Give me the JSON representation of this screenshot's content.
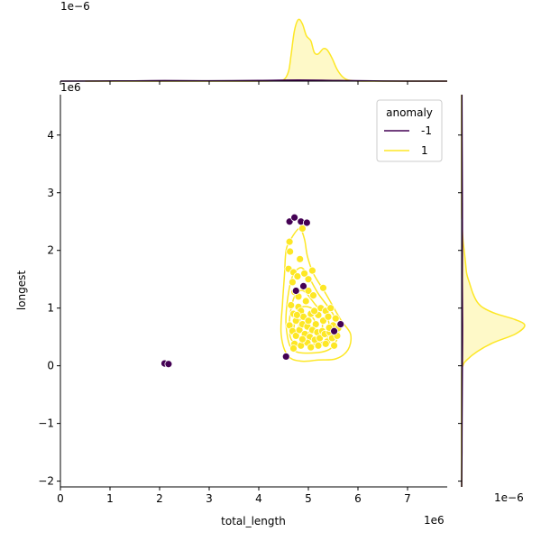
{
  "chart_data": {
    "type": "scatter",
    "style": {
      "colors": {
        "-1": "#440154",
        "1": "#fde725"
      },
      "kde_fill": "#fde725",
      "point_edge": "#ffffff",
      "spine_color": "#000000"
    },
    "xlabel": "total_length",
    "ylabel": "longest",
    "x_offset_text": "1e6",
    "y_offset_text": "1e6",
    "top_marginal_offset_text": "1e−6",
    "right_marginal_offset_text": "1e−6",
    "xlim": [
      0,
      7.8
    ],
    "ylim": [
      -2.1,
      4.7
    ],
    "x_ticks": [
      0,
      1,
      2,
      3,
      4,
      5,
      6,
      7
    ],
    "y_ticks": [
      -2,
      -1,
      0,
      1,
      2,
      3,
      4
    ],
    "grid": false,
    "legend": {
      "title": "anomaly",
      "position": "top-right",
      "entries": [
        {
          "label": "-1",
          "key": "-1"
        },
        {
          "label": "1",
          "key": "1"
        }
      ]
    },
    "series": [
      {
        "name": "-1",
        "points": [
          [
            2.1,
            0.04
          ],
          [
            2.18,
            0.03
          ],
          [
            4.55,
            0.16
          ],
          [
            4.62,
            2.5
          ],
          [
            4.72,
            2.57
          ],
          [
            4.85,
            2.5
          ],
          [
            4.97,
            2.48
          ],
          [
            4.75,
            1.3
          ],
          [
            4.9,
            1.38
          ],
          [
            5.65,
            0.72
          ],
          [
            5.52,
            0.6
          ]
        ]
      },
      {
        "name": "1",
        "points": [
          [
            4.62,
            2.15
          ],
          [
            4.63,
            1.98
          ],
          [
            4.6,
            1.68
          ],
          [
            4.7,
            1.62
          ],
          [
            4.78,
            1.55
          ],
          [
            4.83,
            1.85
          ],
          [
            4.88,
            2.38
          ],
          [
            4.92,
            1.6
          ],
          [
            5.0,
            1.5
          ],
          [
            5.08,
            1.65
          ],
          [
            4.68,
            1.45
          ],
          [
            4.72,
            1.28
          ],
          [
            4.8,
            1.2
          ],
          [
            4.65,
            1.05
          ],
          [
            4.7,
            0.9
          ],
          [
            4.75,
            0.78
          ],
          [
            4.8,
            1.02
          ],
          [
            4.85,
            0.95
          ],
          [
            4.9,
            0.85
          ],
          [
            4.95,
            1.12
          ],
          [
            5.0,
            1.3
          ],
          [
            5.05,
            0.9
          ],
          [
            5.1,
            1.22
          ],
          [
            5.15,
            0.72
          ],
          [
            5.2,
            0.88
          ],
          [
            5.25,
            1.0
          ],
          [
            5.3,
            0.78
          ],
          [
            5.35,
            0.95
          ],
          [
            5.4,
            0.85
          ],
          [
            5.45,
            1.0
          ],
          [
            5.5,
            0.7
          ],
          [
            5.55,
            0.82
          ],
          [
            5.6,
            0.65
          ],
          [
            4.62,
            0.7
          ],
          [
            4.68,
            0.6
          ],
          [
            4.75,
            0.52
          ],
          [
            4.82,
            0.62
          ],
          [
            4.88,
            0.72
          ],
          [
            4.93,
            0.55
          ],
          [
            4.98,
            0.68
          ],
          [
            5.03,
            0.5
          ],
          [
            5.08,
            0.62
          ],
          [
            5.13,
            0.45
          ],
          [
            5.18,
            0.58
          ],
          [
            5.23,
            0.48
          ],
          [
            5.28,
            0.6
          ],
          [
            5.33,
            0.55
          ],
          [
            5.38,
            0.42
          ],
          [
            5.43,
            0.58
          ],
          [
            5.48,
            0.48
          ],
          [
            4.72,
            0.38
          ],
          [
            4.85,
            0.35
          ],
          [
            4.98,
            0.4
          ],
          [
            5.05,
            0.32
          ],
          [
            5.2,
            0.35
          ],
          [
            5.35,
            0.38
          ],
          [
            5.52,
            0.35
          ],
          [
            4.7,
            0.3
          ],
          [
            5.3,
            1.35
          ],
          [
            5.0,
            0.78
          ],
          [
            4.77,
            0.88
          ],
          [
            5.12,
            0.95
          ],
          [
            4.88,
            0.46
          ],
          [
            5.42,
            0.66
          ],
          [
            5.58,
            0.52
          ]
        ]
      }
    ],
    "kde_contours": {
      "series": "1",
      "levels": [
        [
          [
            4.65,
            2.2
          ],
          [
            4.82,
            2.38
          ],
          [
            4.92,
            2.2
          ],
          [
            4.98,
            1.9
          ],
          [
            5.1,
            1.6
          ],
          [
            5.35,
            1.25
          ],
          [
            5.65,
            0.8
          ],
          [
            5.85,
            0.55
          ],
          [
            5.8,
            0.28
          ],
          [
            5.55,
            0.12
          ],
          [
            5.2,
            0.1
          ],
          [
            4.85,
            0.08
          ],
          [
            4.58,
            0.18
          ],
          [
            4.45,
            0.55
          ],
          [
            4.48,
            1.1
          ],
          [
            4.52,
            1.6
          ],
          [
            4.55,
            2.0
          ]
        ],
        [
          [
            4.68,
            1.55
          ],
          [
            4.85,
            1.7
          ],
          [
            5.0,
            1.55
          ],
          [
            5.2,
            1.25
          ],
          [
            5.48,
            0.92
          ],
          [
            5.62,
            0.62
          ],
          [
            5.45,
            0.3
          ],
          [
            5.0,
            0.22
          ],
          [
            4.66,
            0.3
          ],
          [
            4.55,
            0.7
          ],
          [
            4.58,
            1.15
          ]
        ],
        [
          [
            4.72,
            1.2
          ],
          [
            4.9,
            1.3
          ],
          [
            5.15,
            1.05
          ],
          [
            5.4,
            0.8
          ],
          [
            5.35,
            0.45
          ],
          [
            4.95,
            0.36
          ],
          [
            4.66,
            0.45
          ],
          [
            4.62,
            0.8
          ]
        ],
        [
          [
            4.78,
            0.95
          ],
          [
            5.0,
            1.02
          ],
          [
            5.25,
            0.85
          ],
          [
            5.25,
            0.55
          ],
          [
            4.95,
            0.46
          ],
          [
            4.72,
            0.55
          ]
        ],
        [
          [
            4.85,
            0.82
          ],
          [
            5.05,
            0.86
          ],
          [
            5.15,
            0.7
          ],
          [
            5.0,
            0.58
          ],
          [
            4.82,
            0.64
          ]
        ]
      ]
    },
    "marginal_x": {
      "series": [
        {
          "name": "1",
          "points": [
            [
              0.5,
              0
            ],
            [
              3.5,
              0
            ],
            [
              4.3,
              0.003
            ],
            [
              4.5,
              0.02
            ],
            [
              4.6,
              0.15
            ],
            [
              4.65,
              0.4
            ],
            [
              4.72,
              0.78
            ],
            [
              4.8,
              0.95
            ],
            [
              4.88,
              0.88
            ],
            [
              4.96,
              0.7
            ],
            [
              5.05,
              0.62
            ],
            [
              5.12,
              0.44
            ],
            [
              5.2,
              0.42
            ],
            [
              5.3,
              0.5
            ],
            [
              5.38,
              0.48
            ],
            [
              5.48,
              0.35
            ],
            [
              5.58,
              0.18
            ],
            [
              5.7,
              0.06
            ],
            [
              5.85,
              0.01
            ],
            [
              6.2,
              0
            ],
            [
              7.8,
              0
            ]
          ]
        },
        {
          "name": "-1",
          "points": [
            [
              0,
              0
            ],
            [
              1.5,
              0.004
            ],
            [
              2.1,
              0.008
            ],
            [
              3.0,
              0.006
            ],
            [
              4.0,
              0.01
            ],
            [
              4.8,
              0.016
            ],
            [
              5.6,
              0.01
            ],
            [
              6.5,
              0.002
            ],
            [
              7.8,
              0
            ]
          ]
        }
      ]
    },
    "marginal_y": {
      "series": [
        {
          "name": "1",
          "points": [
            [
              -2.1,
              0
            ],
            [
              -0.2,
              0
            ],
            [
              0.0,
              0.02
            ],
            [
              0.1,
              0.08
            ],
            [
              0.25,
              0.25
            ],
            [
              0.4,
              0.5
            ],
            [
              0.55,
              0.85
            ],
            [
              0.7,
              1.0
            ],
            [
              0.8,
              0.85
            ],
            [
              0.9,
              0.55
            ],
            [
              1.0,
              0.35
            ],
            [
              1.1,
              0.25
            ],
            [
              1.25,
              0.18
            ],
            [
              1.45,
              0.12
            ],
            [
              1.6,
              0.08
            ],
            [
              1.8,
              0.06
            ],
            [
              2.0,
              0.04
            ],
            [
              2.2,
              0.02
            ],
            [
              2.5,
              0.005
            ],
            [
              2.8,
              0
            ],
            [
              4.7,
              0
            ]
          ]
        },
        {
          "name": "-1",
          "points": [
            [
              -2.1,
              0
            ],
            [
              -1.5,
              0.004
            ],
            [
              -1.0,
              0.006
            ],
            [
              0.0,
              0.012
            ],
            [
              0.7,
              0.014
            ],
            [
              1.5,
              0.01
            ],
            [
              2.5,
              0.012
            ],
            [
              3.5,
              0.008
            ],
            [
              4.7,
              0.004
            ]
          ]
        }
      ]
    }
  }
}
